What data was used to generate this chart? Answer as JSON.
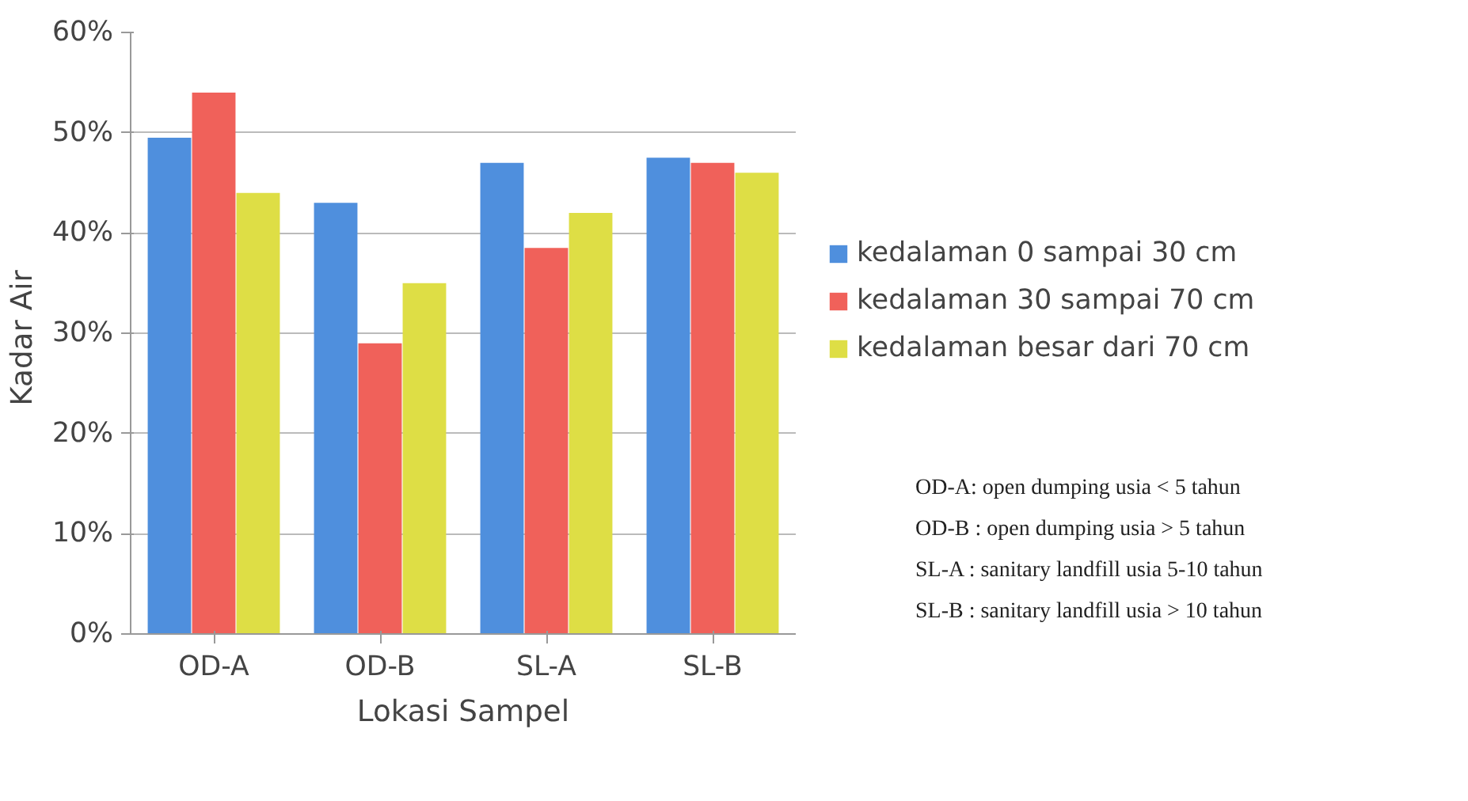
{
  "chart_data": {
    "type": "bar",
    "xlabel": "Lokasi Sampel",
    "ylabel": "Kadar  Air",
    "categories": [
      "OD-A",
      "OD-B",
      "SL-A",
      "SL-B"
    ],
    "series": [
      {
        "name": "kedalaman 0 sampai 30 cm",
        "color": "#4f8fdd",
        "values": [
          49.5,
          43,
          47,
          47.5
        ]
      },
      {
        "name": "kedalaman 30 sampai 70 cm",
        "color": "#f0615a",
        "values": [
          54,
          29,
          38.5,
          47
        ]
      },
      {
        "name": "kedalaman besar dari 70 cm",
        "color": "#dede45",
        "values": [
          44,
          35,
          42,
          46
        ]
      }
    ],
    "ylim": [
      0,
      60
    ],
    "yticks": [
      {
        "value": 0,
        "label": "0%"
      },
      {
        "value": 10,
        "label": "10%"
      },
      {
        "value": 20,
        "label": "20%"
      },
      {
        "value": 30,
        "label": "30%"
      },
      {
        "value": 40,
        "label": "40%"
      },
      {
        "value": 50,
        "label": "50%"
      },
      {
        "value": 60,
        "label": "60%"
      }
    ],
    "grid": "y",
    "legend": "right",
    "annotations": [
      "OD-A: open dumping usia < 5 tahun",
      "OD-B : open dumping usia > 5 tahun",
      "SL-A : sanitary landfill usia 5-10 tahun",
      "SL-B : sanitary landfill usia > 10 tahun"
    ]
  }
}
